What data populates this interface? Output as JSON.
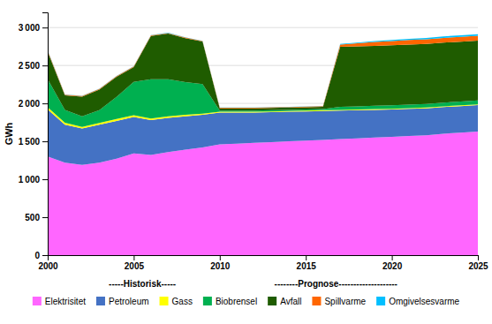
{
  "chart_data": {
    "type": "area",
    "stacked": true,
    "x": [
      2000,
      2001,
      2002,
      2003,
      2004,
      2005,
      2006,
      2007,
      2008,
      2009,
      2010,
      2011,
      2012,
      2013,
      2014,
      2015,
      2016,
      2017,
      2018,
      2019,
      2020,
      2021,
      2022,
      2023,
      2024,
      2025
    ],
    "series": [
      {
        "name": "Elektrisitet",
        "color": "#FF66FF",
        "values": [
          1300,
          1220,
          1190,
          1220,
          1270,
          1340,
          1320,
          1360,
          1390,
          1420,
          1460,
          1470,
          1480,
          1490,
          1500,
          1510,
          1520,
          1530,
          1540,
          1550,
          1560,
          1570,
          1580,
          1600,
          1615,
          1630
        ]
      },
      {
        "name": "Petroleum",
        "color": "#4472C4",
        "values": [
          620,
          500,
          480,
          500,
          500,
          480,
          460,
          450,
          440,
          430,
          420,
          410,
          400,
          395,
          390,
          385,
          380,
          375,
          370,
          365,
          360,
          358,
          355,
          352,
          350,
          348
        ]
      },
      {
        "name": "Gass",
        "color": "#FFFF00",
        "values": [
          30,
          25,
          20,
          22,
          25,
          25,
          20,
          20,
          20,
          15,
          10,
          10,
          10,
          10,
          10,
          10,
          10,
          10,
          10,
          10,
          10,
          10,
          10,
          10,
          10,
          10
        ]
      },
      {
        "name": "Biobrensel",
        "color": "#00B050",
        "values": [
          370,
          170,
          140,
          170,
          290,
          440,
          520,
          490,
          430,
          390,
          15,
          15,
          15,
          15,
          15,
          15,
          15,
          40,
          42,
          44,
          46,
          47,
          48,
          49,
          49,
          50
        ]
      },
      {
        "name": "Avfall",
        "color": "#1F5C00",
        "values": [
          360,
          190,
          260,
          270,
          265,
          195,
          570,
          600,
          580,
          560,
          30,
          30,
          30,
          30,
          30,
          30,
          30,
          790,
          790,
          790,
          790,
          790,
          790,
          790,
          790,
          790
        ]
      },
      {
        "name": "Spillvarme",
        "color": "#FF6600",
        "values": [
          15,
          10,
          8,
          8,
          8,
          8,
          8,
          8,
          8,
          8,
          8,
          8,
          8,
          8,
          8,
          8,
          8,
          30,
          40,
          50,
          55,
          60,
          62,
          63,
          64,
          65
        ]
      },
      {
        "name": "Omgivelsesvarme",
        "color": "#00BFFF",
        "values": [
          5,
          4,
          3,
          3,
          3,
          3,
          3,
          3,
          3,
          3,
          3,
          3,
          3,
          3,
          3,
          3,
          3,
          8,
          10,
          13,
          15,
          17,
          18,
          19,
          19,
          20
        ]
      }
    ],
    "ylabel": "GWh",
    "xlim": [
      2000,
      2025
    ],
    "xticks": [
      2000,
      2005,
      2010,
      2015,
      2020,
      2025
    ],
    "ylim": [
      0,
      3200
    ],
    "yticks": [
      0,
      500,
      {
        "value": 1000,
        "label": "1 000"
      },
      {
        "value": 1500,
        "label": "1 500"
      },
      {
        "value": 2000,
        "label": "2 000"
      },
      {
        "value": 2500,
        "label": "2 500"
      },
      {
        "value": 3000,
        "label": "3 000"
      }
    ],
    "grid": true,
    "legend": "bottom",
    "annotations": [
      "-----Historisk-----",
      "--------Prognose--------------------"
    ]
  }
}
